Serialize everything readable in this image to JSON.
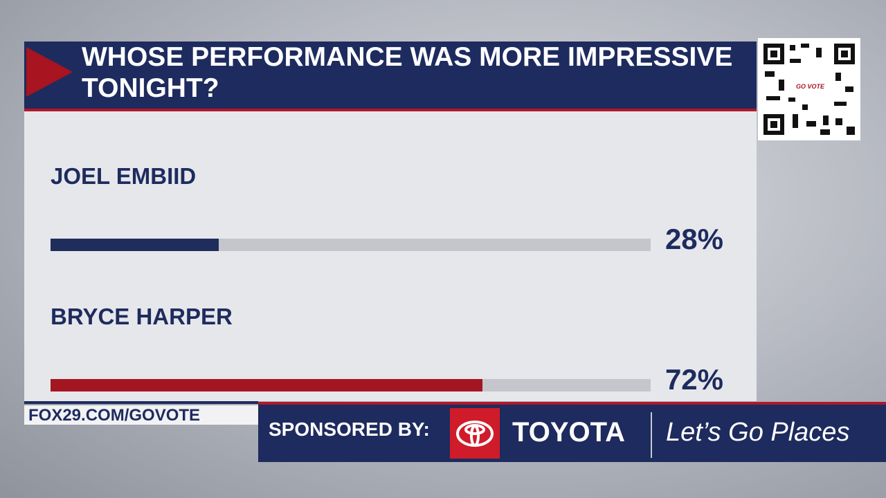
{
  "chart_data": {
    "type": "bar",
    "title": "WHOSE PERFORMANCE WAS MORE IMPRESSIVE TONIGHT?",
    "categories": [
      "JOEL EMBIID",
      "BRYCE HARPER"
    ],
    "values": [
      28,
      72
    ],
    "value_labels": [
      "28%",
      "72%"
    ],
    "colors": [
      "#1f2d5c",
      "#a31621"
    ],
    "xlim": [
      0,
      100
    ]
  },
  "footer": {
    "url": "FOX29.COM/GOVOTE",
    "sponsor_label": "SPONSORED BY:",
    "brand": "TOYOTA",
    "slogan": "Let’s Go Places"
  },
  "qr_label": "GO VOTE"
}
